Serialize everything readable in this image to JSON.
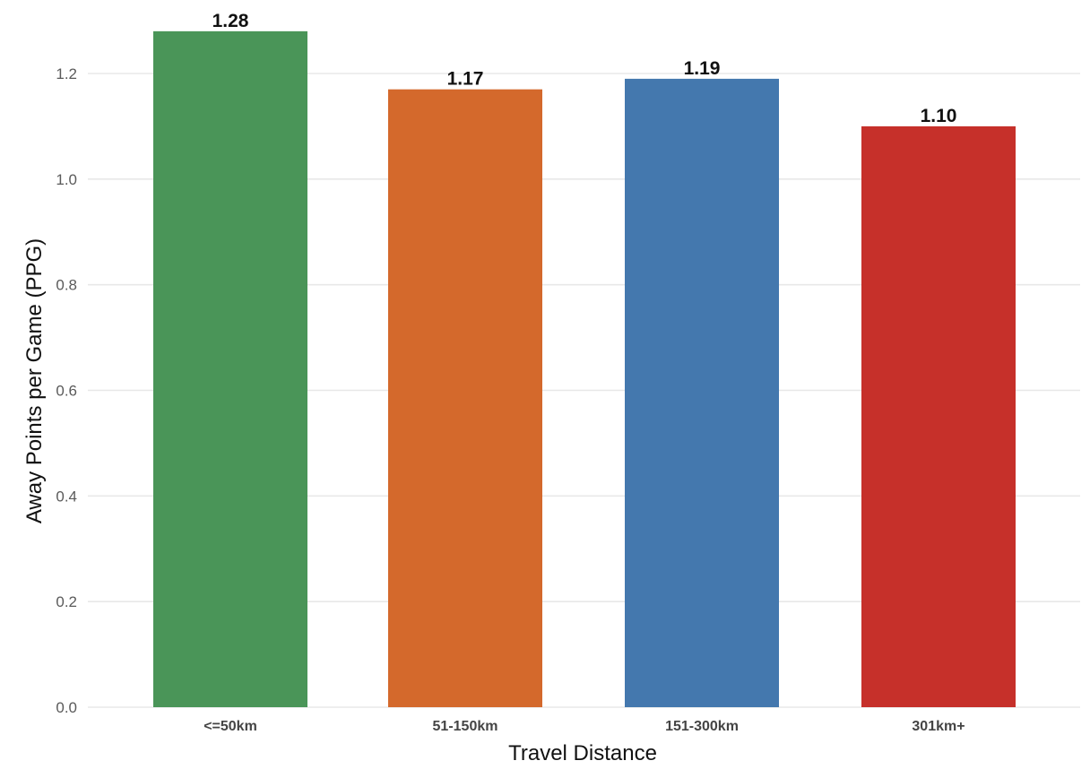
{
  "chart_data": {
    "type": "bar",
    "title": "",
    "xlabel": "Travel Distance",
    "ylabel": "Away Points per Game (PPG)",
    "categories": [
      "<=50km",
      "51-150km",
      "151-300km",
      "301km+"
    ],
    "values": [
      1.28,
      1.17,
      1.19,
      1.1
    ],
    "value_labels": [
      "1.28",
      "1.17",
      "1.19",
      "1.10"
    ],
    "colors": [
      "#4A9558",
      "#D4692C",
      "#4478AE",
      "#C6302A"
    ],
    "ylim": [
      0,
      1.3
    ],
    "yticks": [
      0.0,
      0.2,
      0.4,
      0.6,
      0.8,
      1.0,
      1.2
    ],
    "ytick_labels": [
      "0.0",
      "0.2",
      "0.4",
      "0.6",
      "0.8",
      "1.0",
      "1.2"
    ],
    "grid": true,
    "legend": "none"
  }
}
